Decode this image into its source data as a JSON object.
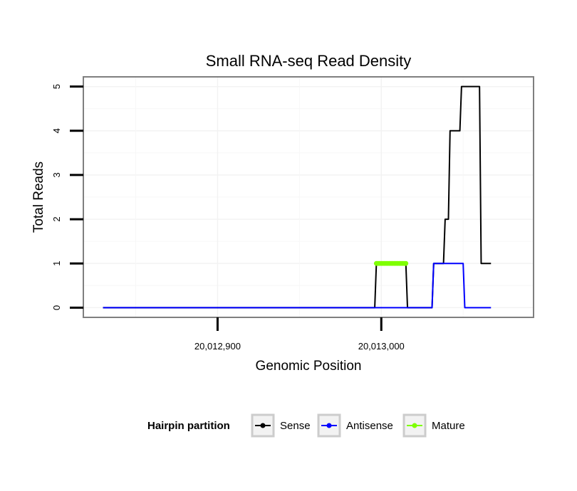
{
  "chart_data": {
    "type": "line",
    "title": "Small RNA-seq Read Density",
    "xlabel": "Genomic Position",
    "ylabel": "Total Reads",
    "xlim": [
      20012818,
      20013093
    ],
    "ylim": [
      -0.22,
      5.22
    ],
    "x_ticks": [
      {
        "value": 20012900,
        "label": "20,012,900"
      },
      {
        "value": 20013000,
        "label": "20,013,000"
      }
    ],
    "y_ticks": [
      {
        "value": 0,
        "label": "0"
      },
      {
        "value": 1,
        "label": "1"
      },
      {
        "value": 2,
        "label": "2"
      },
      {
        "value": 3,
        "label": "3"
      },
      {
        "value": 4,
        "label": "4"
      },
      {
        "value": 5,
        "label": "5"
      }
    ],
    "grid": true,
    "legend": {
      "title": "Hairpin partition",
      "position": "bottom",
      "entries": [
        {
          "label": "Sense",
          "color": "#000000"
        },
        {
          "label": "Antisense",
          "color": "#0000ff"
        },
        {
          "label": "Mature",
          "color": "#7fff00"
        }
      ]
    },
    "series": [
      {
        "name": "Sense",
        "color": "#000000",
        "x": [
          20012830,
          20012996,
          20012997,
          20013015,
          20013016,
          20013031,
          20013032,
          20013035,
          20013036,
          20013038,
          20013039,
          20013041,
          20013042,
          20013048,
          20013049,
          20013056,
          20013057,
          20013060,
          20013061,
          20013067
        ],
        "y": [
          0,
          0,
          1,
          1,
          0,
          0,
          1,
          1,
          1,
          1,
          2,
          2,
          4,
          4,
          5,
          5,
          5,
          5,
          1,
          1
        ]
      },
      {
        "name": "Antisense",
        "color": "#0000ff",
        "x": [
          20012830,
          20012996,
          20013030,
          20013031,
          20013032,
          20013050,
          20013051,
          20013067
        ],
        "y": [
          0,
          0,
          0,
          0,
          1,
          1,
          0,
          0
        ]
      },
      {
        "name": "Mature",
        "color": "#7fff00",
        "x": [
          20012997,
          20012998,
          20012999,
          20013000,
          20013001,
          20013002,
          20013003,
          20013004,
          20013005,
          20013006,
          20013007,
          20013008,
          20013009,
          20013010,
          20013011,
          20013012,
          20013013,
          20013014,
          20013015
        ],
        "y": [
          1,
          1,
          1,
          1,
          1,
          1,
          1,
          1,
          1,
          1,
          1,
          1,
          1,
          1,
          1,
          1,
          1,
          1,
          1
        ]
      }
    ]
  }
}
